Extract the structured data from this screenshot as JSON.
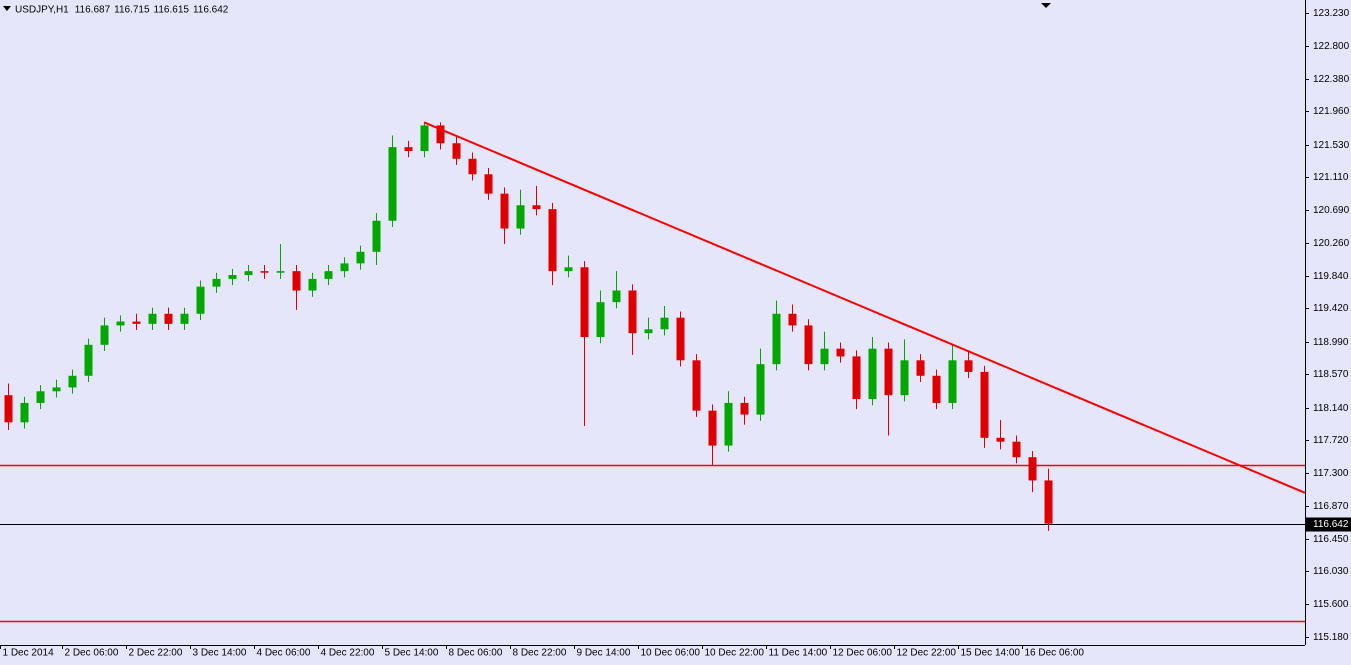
{
  "chart_data": {
    "type": "candlestick",
    "header": {
      "symbol": "USDJPY,H1",
      "values": [
        116.687,
        116.715,
        116.615,
        116.642
      ]
    },
    "last_price": 116.642,
    "background": "#e6e6fa",
    "up_color": "#00a800",
    "down_color": "#e00000",
    "open": [
      118.3,
      117.95,
      118.2,
      118.35,
      118.4,
      118.55,
      118.95,
      119.2,
      119.25,
      119.22,
      119.35,
      119.22,
      119.35,
      119.7,
      119.8,
      119.85,
      119.9,
      119.88,
      119.9,
      119.65,
      119.8,
      119.9,
      120.0,
      120.15,
      120.55,
      121.5,
      121.45,
      121.78,
      121.55,
      121.35,
      121.15,
      120.9,
      120.45,
      120.75,
      120.7,
      119.9,
      119.95,
      119.05,
      119.5,
      119.65,
      119.1,
      119.15,
      119.3,
      118.75,
      118.1,
      117.65,
      118.2,
      118.05,
      118.7,
      119.35,
      119.2,
      118.7,
      118.9,
      118.8,
      118.25,
      118.9,
      118.3,
      118.75,
      118.55,
      118.2,
      118.75,
      118.6,
      117.75,
      117.7,
      117.5,
      117.2
    ],
    "high": [
      118.45,
      118.28,
      118.43,
      118.5,
      118.63,
      119.03,
      119.3,
      119.33,
      119.35,
      119.43,
      119.43,
      119.43,
      119.78,
      119.88,
      119.93,
      119.98,
      119.98,
      120.25,
      119.98,
      119.88,
      119.98,
      120.08,
      120.23,
      120.65,
      121.65,
      121.58,
      121.82,
      121.82,
      121.63,
      121.43,
      121.23,
      120.98,
      120.95,
      121.0,
      120.78,
      120.1,
      120.03,
      119.65,
      119.9,
      119.73,
      119.3,
      119.45,
      119.38,
      118.83,
      118.18,
      118.35,
      118.28,
      118.9,
      119.52,
      119.47,
      119.28,
      119.12,
      118.98,
      118.88,
      119.05,
      118.98,
      119.02,
      118.83,
      118.63,
      118.95,
      118.88,
      118.68,
      117.98,
      117.78,
      117.58,
      117.35
    ],
    "low": [
      117.85,
      117.87,
      118.12,
      118.27,
      118.32,
      118.47,
      118.87,
      119.12,
      119.14,
      119.14,
      119.14,
      119.14,
      119.27,
      119.62,
      119.72,
      119.77,
      119.8,
      119.8,
      119.4,
      119.57,
      119.72,
      119.82,
      119.92,
      119.98,
      120.47,
      121.37,
      121.37,
      121.47,
      121.27,
      121.07,
      120.82,
      120.25,
      120.37,
      120.62,
      119.72,
      119.82,
      117.9,
      118.97,
      119.42,
      118.82,
      119.02,
      119.07,
      118.67,
      118.02,
      117.4,
      117.57,
      117.92,
      117.97,
      118.62,
      119.12,
      118.62,
      118.62,
      118.72,
      118.12,
      118.17,
      117.78,
      118.22,
      118.47,
      118.12,
      118.12,
      118.52,
      117.62,
      117.6,
      117.42,
      117.05,
      116.55
    ],
    "close": [
      117.95,
      118.2,
      118.35,
      118.4,
      118.55,
      118.95,
      119.2,
      119.25,
      119.22,
      119.35,
      119.22,
      119.35,
      119.7,
      119.8,
      119.85,
      119.9,
      119.88,
      119.9,
      119.65,
      119.8,
      119.9,
      120.0,
      120.15,
      120.55,
      121.5,
      121.45,
      121.78,
      121.55,
      121.35,
      121.15,
      120.9,
      120.45,
      120.75,
      120.7,
      119.9,
      119.95,
      119.05,
      119.5,
      119.65,
      119.1,
      119.15,
      119.3,
      118.75,
      118.1,
      117.65,
      118.2,
      118.05,
      118.7,
      119.35,
      119.2,
      118.7,
      118.9,
      118.8,
      118.25,
      118.9,
      118.3,
      118.75,
      118.55,
      118.2,
      118.75,
      118.6,
      117.75,
      117.7,
      117.5,
      117.2,
      116.642
    ],
    "xlim": [
      -0.5,
      81.0625
    ],
    "xticks": [
      {
        "value": -0.5,
        "label": "1 Dec 2014"
      },
      {
        "value": 3.375,
        "label": "2 Dec 06:00"
      },
      {
        "value": 7.375,
        "label": "2 Dec 22:00"
      },
      {
        "value": 11.375,
        "label": "3 Dec 14:00"
      },
      {
        "value": 15.375,
        "label": "4 Dec 06:00"
      },
      {
        "value": 19.375,
        "label": "4 Dec 22:00"
      },
      {
        "value": 23.375,
        "label": "5 Dec 14:00"
      },
      {
        "value": 27.375,
        "label": "8 Dec 06:00"
      },
      {
        "value": 31.375,
        "label": "8 Dec 22:00"
      },
      {
        "value": 35.375,
        "label": "9 Dec 14:00"
      },
      {
        "value": 39.375,
        "label": "10 Dec 06:00"
      },
      {
        "value": 43.375,
        "label": "10 Dec 22:00"
      },
      {
        "value": 47.375,
        "label": "11 Dec 14:00"
      },
      {
        "value": 51.375,
        "label": "12 Dec 06:00"
      },
      {
        "value": 55.375,
        "label": "12 Dec 22:00"
      },
      {
        "value": 59.375,
        "label": "15 Dec 14:00"
      },
      {
        "value": 63.375,
        "label": "16 Dec 06:00"
      }
    ],
    "ylim": [
      115.077,
      123.398
    ],
    "yticks": [
      {
        "value": 123.23,
        "label": "123.230"
      },
      {
        "value": 122.8,
        "label": "122.800"
      },
      {
        "value": 122.38,
        "label": "122.380"
      },
      {
        "value": 121.96,
        "label": "121.960"
      },
      {
        "value": 121.53,
        "label": "121.530"
      },
      {
        "value": 121.11,
        "label": "121.110"
      },
      {
        "value": 120.69,
        "label": "120.690"
      },
      {
        "value": 120.26,
        "label": "120.260"
      },
      {
        "value": 119.84,
        "label": "119.840"
      },
      {
        "value": 119.42,
        "label": "119.420"
      },
      {
        "value": 118.99,
        "label": "118.990"
      },
      {
        "value": 118.57,
        "label": "118.570"
      },
      {
        "value": 118.14,
        "label": "118.140"
      },
      {
        "value": 117.72,
        "label": "117.720"
      },
      {
        "value": 117.3,
        "label": "117.300"
      },
      {
        "value": 116.87,
        "label": "116.870"
      },
      {
        "value": 116.45,
        "label": "116.450"
      },
      {
        "value": 116.03,
        "label": "116.030"
      },
      {
        "value": 115.6,
        "label": "115.600"
      },
      {
        "value": 115.18,
        "label": "115.180"
      }
    ],
    "hlines": [
      {
        "value": 117.4,
        "color": "#ff0000"
      },
      {
        "value": 115.39,
        "color": "#ff0000"
      }
    ],
    "trendline": {
      "x": [
        26,
        81.0625
      ],
      "y": [
        121.82,
        117.04
      ],
      "color": "#ff0000"
    }
  }
}
